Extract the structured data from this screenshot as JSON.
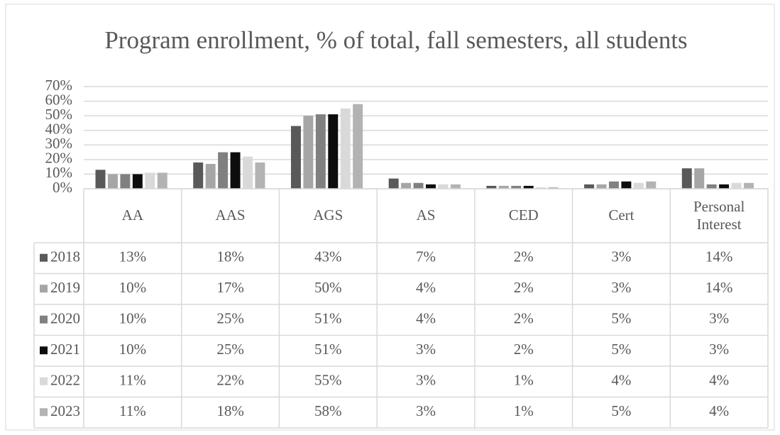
{
  "chart_data": {
    "type": "bar",
    "title": "Program enrollment, % of total, fall semesters, all students",
    "categories": [
      "AA",
      "AAS",
      "AGS",
      "AS",
      "CED",
      "Cert",
      "Personal Interest"
    ],
    "series": [
      {
        "name": "2018",
        "color": "#595959",
        "values": [
          13,
          18,
          43,
          7,
          2,
          3,
          14
        ],
        "value_labels": [
          "13%",
          "18%",
          "43%",
          "7%",
          "2%",
          "3%",
          "14%"
        ]
      },
      {
        "name": "2019",
        "color": "#a6a6a6",
        "values": [
          10,
          17,
          50,
          4,
          2,
          3,
          14
        ],
        "value_labels": [
          "10%",
          "17%",
          "50%",
          "4%",
          "2%",
          "3%",
          "14%"
        ]
      },
      {
        "name": "2020",
        "color": "#808080",
        "values": [
          10,
          25,
          51,
          4,
          2,
          5,
          3
        ],
        "value_labels": [
          "10%",
          "25%",
          "51%",
          "4%",
          "2%",
          "5%",
          "3%"
        ]
      },
      {
        "name": "2021",
        "color": "#0d0d0d",
        "values": [
          10,
          25,
          51,
          3,
          2,
          5,
          3
        ],
        "value_labels": [
          "10%",
          "25%",
          "51%",
          "3%",
          "2%",
          "5%",
          "3%"
        ]
      },
      {
        "name": "2022",
        "color": "#d9d9d9",
        "values": [
          11,
          22,
          55,
          3,
          1,
          4,
          4
        ],
        "value_labels": [
          "11%",
          "22%",
          "55%",
          "3%",
          "1%",
          "4%",
          "4%"
        ]
      },
      {
        "name": "2023",
        "color": "#b3b3b3",
        "values": [
          11,
          18,
          58,
          3,
          1,
          5,
          4
        ],
        "value_labels": [
          "11%",
          "18%",
          "58%",
          "3%",
          "1%",
          "5%",
          "4%"
        ]
      }
    ],
    "ylim": [
      0,
      70
    ],
    "yticks": [
      {
        "value": 0,
        "label": "0%"
      },
      {
        "value": 10,
        "label": "10%"
      },
      {
        "value": 20,
        "label": "20%"
      },
      {
        "value": 30,
        "label": "30%"
      },
      {
        "value": 40,
        "label": "40%"
      },
      {
        "value": 50,
        "label": "50%"
      },
      {
        "value": 60,
        "label": "60%"
      },
      {
        "value": 70,
        "label": "70%"
      }
    ],
    "grid": true
  }
}
